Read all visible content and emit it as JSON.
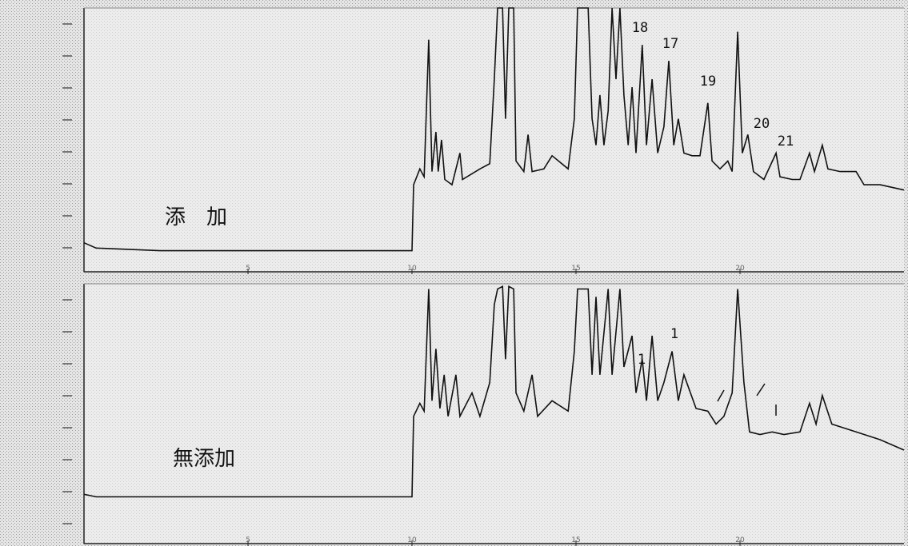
{
  "chart_data": [
    {
      "type": "line",
      "label": "添　加",
      "color": "#111111",
      "xlim": [
        0,
        25
      ],
      "ylim": [
        0,
        100
      ],
      "xticks": [
        5,
        10,
        15,
        20
      ],
      "x": [
        0,
        0.37,
        2.32,
        10.0,
        10.05,
        10.24,
        10.37,
        10.51,
        10.61,
        10.73,
        10.8,
        10.9,
        11.0,
        11.22,
        11.46,
        11.54,
        12.07,
        12.37,
        12.51,
        12.61,
        12.76,
        12.85,
        12.95,
        13.1,
        13.17,
        13.41,
        13.54,
        13.66,
        14.02,
        14.27,
        14.76,
        14.95,
        15.05,
        15.37,
        15.49,
        15.61,
        15.73,
        15.85,
        15.98,
        16.1,
        16.22,
        16.34,
        16.46,
        16.59,
        16.71,
        16.83,
        17.02,
        17.15,
        17.32,
        17.49,
        17.68,
        17.83,
        17.98,
        18.12,
        18.29,
        18.54,
        18.78,
        19.02,
        19.15,
        19.39,
        19.63,
        19.76,
        19.93,
        20.07,
        20.24,
        20.41,
        20.73,
        21.1,
        21.22,
        21.59,
        21.83,
        22.12,
        22.27,
        22.51,
        22.68,
        23.05,
        23.54,
        23.78,
        24.27,
        25
      ],
      "values": [
        11,
        9,
        8,
        8,
        33,
        39,
        36,
        88,
        38,
        53,
        38,
        50,
        35,
        33,
        45,
        35,
        39,
        41,
        73,
        100,
        100,
        58,
        100,
        100,
        42,
        38,
        52,
        38,
        39,
        44,
        39,
        58,
        100,
        100,
        58,
        48,
        67,
        48,
        61,
        100,
        73,
        100,
        67,
        48,
        70,
        45,
        86,
        48,
        73,
        45,
        55,
        80,
        48,
        58,
        45,
        44,
        44,
        64,
        42,
        39,
        42,
        38,
        91,
        45,
        52,
        38,
        35,
        45,
        36,
        35,
        35,
        45,
        38,
        48,
        39,
        38,
        38,
        33,
        33,
        31
      ],
      "annotations": [
        "18",
        "17",
        "19",
        "20",
        "21"
      ]
    },
    {
      "type": "line",
      "label": "無添加",
      "color": "#111111",
      "xlim": [
        0,
        25
      ],
      "ylim": [
        0,
        100
      ],
      "xticks": [
        5,
        10,
        15,
        20
      ],
      "x": [
        0,
        0.37,
        10.0,
        10.05,
        10.24,
        10.37,
        10.51,
        10.61,
        10.73,
        10.85,
        10.98,
        11.1,
        11.34,
        11.46,
        11.83,
        12.07,
        12.37,
        12.51,
        12.61,
        12.76,
        12.85,
        12.95,
        13.1,
        13.17,
        13.41,
        13.66,
        13.83,
        14.27,
        14.76,
        14.95,
        15.05,
        15.37,
        15.49,
        15.61,
        15.73,
        15.98,
        16.1,
        16.34,
        16.46,
        16.71,
        16.83,
        17.02,
        17.15,
        17.32,
        17.49,
        17.68,
        17.93,
        18.12,
        18.29,
        18.66,
        19.02,
        19.27,
        19.51,
        19.76,
        19.93,
        20.12,
        20.29,
        20.61,
        20.98,
        21.34,
        21.83,
        22.12,
        22.32,
        22.51,
        22.8,
        23.54,
        24.27,
        25
      ],
      "values": [
        19,
        18,
        18,
        49,
        54,
        51,
        98,
        55,
        75,
        52,
        65,
        49,
        65,
        49,
        58,
        49,
        62,
        92,
        98,
        99,
        71,
        99,
        98,
        58,
        51,
        65,
        49,
        55,
        51,
        74,
        98,
        98,
        65,
        95,
        65,
        98,
        65,
        98,
        68,
        80,
        58,
        71,
        55,
        80,
        55,
        62,
        74,
        55,
        65,
        52,
        51,
        46,
        49,
        58,
        98,
        62,
        43,
        42,
        43,
        42,
        43,
        54,
        46,
        57,
        46,
        43,
        40,
        36
      ],
      "annotations": [
        "1",
        "1"
      ]
    }
  ]
}
